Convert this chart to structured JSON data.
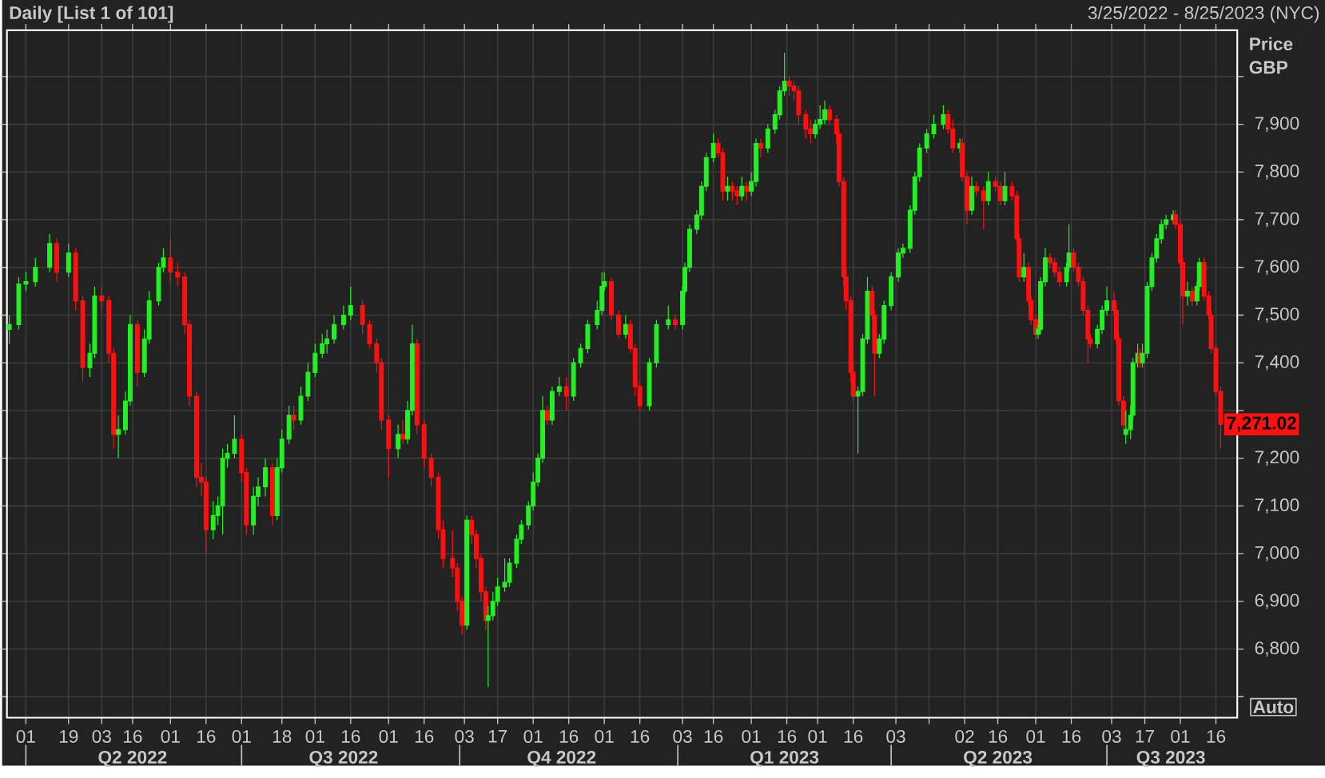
{
  "chart_data": {
    "type": "candlestick",
    "title": "Daily [List 1 of 101]",
    "subtitle": "3/25/2022 - 8/25/2023 (NYC)",
    "ylabel": "Price GBP",
    "colors": [
      "#22f022",
      "#22f022",
      "#22f022",
      "#22f022",
      "#22f022",
      "#ff1010",
      "#22f022",
      "#ff1010",
      "#ff1010",
      "#22f022",
      "#22f022",
      "#ff1010",
      "#ff1010",
      "#ff1010",
      "#22f022",
      "#22f022",
      "#22f022",
      "#ff1010",
      "#22f022",
      "#22f022",
      "#22f022",
      "#22f022",
      "#ff1010",
      "#ff1010",
      "#ff1010",
      "#ff1010",
      "#ff1010",
      "#ff1010",
      "#ff1010",
      "#22f022",
      "#22f022",
      "#22f022",
      "#22f022",
      "#22f022",
      "#ff1010",
      "#ff1010",
      "#22f022",
      "#22f022",
      "#22f022",
      "#ff1010",
      "#22f022",
      "#22f022",
      "#22f022",
      "#ff1010",
      "#22f022",
      "#22f022",
      "#22f022",
      "#22f022",
      "#22f022",
      "#22f022",
      "#22f022",
      "#22f022",
      "#ff1010",
      "#ff1010",
      "#ff1010",
      "#ff1010",
      "#ff1010",
      "#22f022",
      "#ff1010",
      "#22f022",
      "#22f022",
      "#ff1010",
      "#ff1010",
      "#ff1010",
      "#ff1010",
      "#ff1010",
      "#ff1010",
      "#ff1010",
      "#ff1010",
      "#22f022",
      "#ff1010",
      "#ff1010",
      "#ff1010",
      "#ff1010",
      "#22f022",
      "#22f022",
      "#22f022",
      "#22f022",
      "#22f022",
      "#22f022",
      "#22f022",
      "#22f022",
      "#22f022",
      "#22f022",
      "#22f022",
      "#ff1010",
      "#22f022",
      "#22f022",
      "#ff1010",
      "#22f022",
      "#22f022",
      "#22f022",
      "#22f022",
      "#22f022",
      "#22f022",
      "#ff1010",
      "#ff1010",
      "#22f022",
      "#ff1010",
      "#ff1010",
      "#ff1010",
      "#22f022",
      "#22f022",
      "#22f022",
      "#ff1010",
      "#22f022",
      "#22f022",
      "#22f022",
      "#22f022",
      "#22f022",
      "#22f022",
      "#22f022",
      "#ff1010",
      "#ff1010",
      "#22f022",
      "#ff1010",
      "#ff1010",
      "#22f022",
      "#ff1010",
      "#22f022",
      "#22f022",
      "#ff1010",
      "#22f022",
      "#22f022",
      "#22f022",
      "#22f022",
      "#ff1010",
      "#ff1010",
      "#ff1010",
      "#ff1010",
      "#ff1010",
      "#22f022",
      "#22f022",
      "#22f022",
      "#ff1010",
      "#ff1010",
      "#ff1010",
      "#ff1010",
      "#ff1010",
      "#ff1010",
      "#ff1010",
      "#22f022",
      "#22f022",
      "#22f022",
      "#ff1010",
      "#ff1010",
      "#22f022",
      "#22f022",
      "#22f022",
      "#22f022",
      "#22f022",
      "#22f022",
      "#22f022",
      "#22f022",
      "#22f022",
      "#22f022",
      "#22f022",
      "#ff1010",
      "#ff1010",
      "#22f022",
      "#ff1010",
      "#ff1010",
      "#22f022",
      "#ff1010",
      "#ff1010",
      "#22f022",
      "#ff1010",
      "#ff1010",
      "#22f022",
      "#ff1010",
      "#ff1010",
      "#ff1010",
      "#22f022",
      "#ff1010",
      "#ff1010",
      "#ff1010",
      "#22f022",
      "#22f022",
      "#22f022",
      "#ff1010",
      "#ff1010",
      "#ff1010",
      "#22f022",
      "#22f022",
      "#ff1010",
      "#ff1010",
      "#ff1010",
      "#ff1010",
      "#ff1010",
      "#22f022",
      "#22f022",
      "#22f022",
      "#ff1010",
      "#ff1010",
      "#ff1010",
      "#ff1010",
      "#22f022",
      "#22f022",
      "#22f022",
      "#22f022",
      "#ff1010",
      "#22f022",
      "#22f022",
      "#22f022",
      "#22f022",
      "#22f022",
      "#22f022",
      "#22f022",
      "#ff1010",
      "#ff1010",
      "#ff1010",
      "#22f022",
      "#ff1010",
      "#22f022",
      "#22f022",
      "#ff1010",
      "#ff1010",
      "#ff1010",
      "#ff1010",
      "#ff1010"
    ],
    "annotations": [
      {
        "text": "7,271.02",
        "x": "2023-08-18",
        "y": 7271.02
      },
      "Auto"
    ],
    "grid": true,
    "xlim": [
      "2022-03-24",
      "2023-08-25"
    ],
    "ylim": [
      6656,
      8097
    ],
    "x2lim": [
      "2022-03-24",
      "2023-08-25"
    ],
    "xticks": [
      {
        "value": "2022-04-01",
        "label": "01"
      },
      {
        "value": "2022-04-19",
        "label": "19"
      },
      {
        "value": "2022-05-03",
        "label": "03"
      },
      {
        "value": "2022-05-16",
        "label": "16"
      },
      {
        "value": "2022-06-01",
        "label": "01"
      },
      {
        "value": "2022-06-16",
        "label": "16"
      },
      {
        "value": "2022-07-01",
        "label": "01"
      },
      {
        "value": "2022-07-18",
        "label": "18"
      },
      {
        "value": "2022-08-01",
        "label": "01"
      },
      {
        "value": "2022-08-16",
        "label": "16"
      },
      {
        "value": "2022-09-01",
        "label": "01"
      },
      {
        "value": "2022-09-16",
        "label": "16"
      },
      {
        "value": "2022-10-03",
        "label": "03"
      },
      {
        "value": "2022-10-17",
        "label": "17"
      },
      {
        "value": "2022-11-01",
        "label": "01"
      },
      {
        "value": "2022-11-16",
        "label": "16"
      },
      {
        "value": "2022-12-01",
        "label": "01"
      },
      {
        "value": "2022-12-16",
        "label": "16"
      },
      {
        "value": "2023-01-03",
        "label": "03"
      },
      {
        "value": "2023-01-16",
        "label": "16"
      },
      {
        "value": "2023-02-01",
        "label": "01"
      },
      {
        "value": "2023-02-16",
        "label": "16"
      },
      {
        "value": "2023-03-01",
        "label": "01"
      },
      {
        "value": "2023-03-16",
        "label": "16"
      },
      {
        "value": "2023-04-03",
        "label": "03"
      },
      {
        "value": "2023-04-17",
        "label": null
      },
      {
        "value": "2023-05-02",
        "label": "02"
      },
      {
        "value": "2023-05-16",
        "label": "16"
      },
      {
        "value": "2023-06-01",
        "label": "01"
      },
      {
        "value": "2023-06-16",
        "label": "16"
      },
      {
        "value": "2023-07-03",
        "label": "03"
      },
      {
        "value": "2023-07-17",
        "label": "17"
      },
      {
        "value": "2023-08-01",
        "label": "01"
      },
      {
        "value": "2023-08-16",
        "label": "16"
      }
    ],
    "x2ticks": [
      {
        "value": "2022-05-16",
        "label": "Q2 2022"
      },
      {
        "value": "2022-08-13",
        "label": "Q3 2022"
      },
      {
        "value": "2022-11-13",
        "label": "Q4 2022"
      },
      {
        "value": "2023-02-15",
        "label": "Q1 2023"
      },
      {
        "value": "2023-05-16",
        "label": "Q2 2023"
      },
      {
        "value": "2023-07-28",
        "label": "Q3 2023"
      },
      {
        "value": "2022-04-01",
        "label": null
      },
      {
        "value": "2022-07-01",
        "label": null
      },
      {
        "value": "2022-10-01",
        "label": null
      },
      {
        "value": "2023-01-01",
        "label": null
      },
      {
        "value": "2023-04-01",
        "label": null
      },
      {
        "value": "2023-07-01",
        "label": null
      }
    ],
    "yticks": [
      {
        "value": 6700,
        "label": null
      },
      {
        "value": 6800,
        "label": "6,800"
      },
      {
        "value": 6900,
        "label": "6,900"
      },
      {
        "value": 7000,
        "label": "7,000"
      },
      {
        "value": 7100,
        "label": "7,100"
      },
      {
        "value": 7200,
        "label": "7,200"
      },
      {
        "value": 7300,
        "label": null
      },
      {
        "value": 7400,
        "label": "7,400"
      },
      {
        "value": 7500,
        "label": "7,500"
      },
      {
        "value": 7600,
        "label": "7,600"
      },
      {
        "value": 7700,
        "label": "7,700"
      },
      {
        "value": 7800,
        "label": "7,800"
      },
      {
        "value": 7900,
        "label": "7,900"
      },
      {
        "value": 8000,
        "label": null
      }
    ],
    "x": [
      "2022-03-25",
      "2022-03-29",
      "2022-04-01",
      "2022-04-05",
      "2022-04-11",
      "2022-04-14",
      "2022-04-19",
      "2022-04-22",
      "2022-04-25",
      "2022-04-28",
      "2022-04-30",
      "2022-05-03",
      "2022-05-06",
      "2022-05-08",
      "2022-05-10",
      "2022-05-13",
      "2022-05-15",
      "2022-05-18",
      "2022-05-21",
      "2022-05-23",
      "2022-05-27",
      "2022-05-29",
      "2022-06-01",
      "2022-06-04",
      "2022-06-07",
      "2022-06-09",
      "2022-06-12",
      "2022-06-14",
      "2022-06-16",
      "2022-06-19",
      "2022-06-21",
      "2022-06-23",
      "2022-06-25",
      "2022-06-28",
      "2022-07-01",
      "2022-07-03",
      "2022-07-06",
      "2022-07-08",
      "2022-07-11",
      "2022-07-14",
      "2022-07-16",
      "2022-07-18",
      "2022-07-21",
      "2022-07-23",
      "2022-07-26",
      "2022-07-29",
      "2022-08-01",
      "2022-08-04",
      "2022-08-06",
      "2022-08-09",
      "2022-08-13",
      "2022-08-16",
      "2022-08-21",
      "2022-08-24",
      "2022-08-27",
      "2022-08-29",
      "2022-09-01",
      "2022-09-05",
      "2022-09-07",
      "2022-09-09",
      "2022-09-11",
      "2022-09-13",
      "2022-09-16",
      "2022-09-19",
      "2022-09-22",
      "2022-09-24",
      "2022-09-28",
      "2022-09-30",
      "2022-10-02",
      "2022-10-04",
      "2022-10-06",
      "2022-10-08",
      "2022-10-10",
      "2022-10-12",
      "2022-10-13",
      "2022-10-15",
      "2022-10-17",
      "2022-10-20",
      "2022-10-22",
      "2022-10-25",
      "2022-10-27",
      "2022-10-30",
      "2022-11-01",
      "2022-11-03",
      "2022-11-05",
      "2022-11-07",
      "2022-11-09",
      "2022-11-12",
      "2022-11-15",
      "2022-11-18",
      "2022-11-21",
      "2022-11-24",
      "2022-11-28",
      "2022-11-30",
      "2022-12-01",
      "2022-12-04",
      "2022-12-07",
      "2022-12-10",
      "2022-12-12",
      "2022-12-14",
      "2022-12-16",
      "2022-12-20",
      "2022-12-23",
      "2022-12-28",
      "2022-12-31",
      "2023-01-03",
      "2023-01-04",
      "2023-01-06",
      "2023-01-09",
      "2023-01-11",
      "2023-01-13",
      "2023-01-16",
      "2023-01-18",
      "2023-01-20",
      "2023-01-22",
      "2023-01-24",
      "2023-01-26",
      "2023-01-28",
      "2023-01-30",
      "2023-02-01",
      "2023-02-03",
      "2023-02-05",
      "2023-02-08",
      "2023-02-11",
      "2023-02-13",
      "2023-02-15",
      "2023-02-17",
      "2023-02-19",
      "2023-02-21",
      "2023-02-24",
      "2023-02-26",
      "2023-02-28",
      "2023-03-02",
      "2023-03-04",
      "2023-03-06",
      "2023-03-09",
      "2023-03-10",
      "2023-03-12",
      "2023-03-13",
      "2023-03-15",
      "2023-03-16",
      "2023-03-18",
      "2023-03-20",
      "2023-03-22",
      "2023-03-24",
      "2023-03-25",
      "2023-03-27",
      "2023-03-29",
      "2023-04-01",
      "2023-04-04",
      "2023-04-06",
      "2023-04-09",
      "2023-04-11",
      "2023-04-13",
      "2023-04-16",
      "2023-04-19",
      "2023-04-23",
      "2023-04-25",
      "2023-04-27",
      "2023-04-30",
      "2023-05-01",
      "2023-05-03",
      "2023-05-05",
      "2023-05-07",
      "2023-05-10",
      "2023-05-12",
      "2023-05-15",
      "2023-05-17",
      "2023-05-19",
      "2023-05-22",
      "2023-05-24",
      "2023-05-25",
      "2023-05-27",
      "2023-05-29",
      "2023-05-30",
      "2023-06-01",
      "2023-06-02",
      "2023-06-03",
      "2023-06-05",
      "2023-06-07",
      "2023-06-09",
      "2023-06-11",
      "2023-06-14",
      "2023-06-15",
      "2023-06-17",
      "2023-06-19",
      "2023-06-21",
      "2023-06-23",
      "2023-06-24",
      "2023-06-27",
      "2023-06-29",
      "2023-07-01",
      "2023-07-04",
      "2023-07-05",
      "2023-07-06",
      "2023-07-08",
      "2023-07-09",
      "2023-07-11",
      "2023-07-12",
      "2023-07-14",
      "2023-07-15",
      "2023-07-16",
      "2023-07-18",
      "2023-07-20",
      "2023-07-22",
      "2023-07-24",
      "2023-07-26",
      "2023-07-29",
      "2023-07-30",
      "2023-08-01",
      "2023-08-02",
      "2023-08-04",
      "2023-08-06",
      "2023-08-08",
      "2023-08-09",
      "2023-08-11",
      "2023-08-13",
      "2023-08-14",
      "2023-08-16",
      "2023-08-18"
    ],
    "ohlc": [
      [
        7470,
        7500,
        7440,
        7480
      ],
      [
        7480,
        7580,
        7470,
        7565
      ],
      [
        7565,
        7590,
        7550,
        7570
      ],
      [
        7570,
        7620,
        7560,
        7600
      ],
      [
        7600,
        7670,
        7590,
        7650
      ],
      [
        7650,
        7660,
        7570,
        7590
      ],
      [
        7590,
        7650,
        7580,
        7630
      ],
      [
        7630,
        7640,
        7510,
        7530
      ],
      [
        7530,
        7540,
        7360,
        7390
      ],
      [
        7390,
        7440,
        7370,
        7420
      ],
      [
        7420,
        7560,
        7410,
        7540
      ],
      [
        7540,
        7560,
        7510,
        7530
      ],
      [
        7530,
        7540,
        7400,
        7420
      ],
      [
        7420,
        7430,
        7220,
        7250
      ],
      [
        7250,
        7290,
        7200,
        7260
      ],
      [
        7260,
        7340,
        7250,
        7320
      ],
      [
        7320,
        7500,
        7310,
        7480
      ],
      [
        7480,
        7490,
        7350,
        7380
      ],
      [
        7380,
        7470,
        7370,
        7450
      ],
      [
        7450,
        7550,
        7440,
        7530
      ],
      [
        7530,
        7610,
        7520,
        7600
      ],
      [
        7600,
        7640,
        7590,
        7620
      ],
      [
        7620,
        7660,
        7570,
        7590
      ],
      [
        7590,
        7610,
        7560,
        7580
      ],
      [
        7580,
        7590,
        7460,
        7480
      ],
      [
        7480,
        7490,
        7310,
        7330
      ],
      [
        7330,
        7340,
        7140,
        7160
      ],
      [
        7160,
        7190,
        7120,
        7150
      ],
      [
        7150,
        7160,
        7000,
        7050
      ],
      [
        7050,
        7110,
        7030,
        7080
      ],
      [
        7080,
        7120,
        7060,
        7100
      ],
      [
        7100,
        7220,
        7040,
        7200
      ],
      [
        7200,
        7230,
        7180,
        7210
      ],
      [
        7210,
        7290,
        7200,
        7240
      ],
      [
        7240,
        7250,
        7150,
        7170
      ],
      [
        7170,
        7180,
        7040,
        7060
      ],
      [
        7060,
        7140,
        7040,
        7120
      ],
      [
        7120,
        7160,
        7100,
        7140
      ],
      [
        7140,
        7200,
        7120,
        7180
      ],
      [
        7180,
        7190,
        7060,
        7080
      ],
      [
        7080,
        7200,
        7070,
        7180
      ],
      [
        7180,
        7260,
        7170,
        7240
      ],
      [
        7240,
        7310,
        7230,
        7290
      ],
      [
        7290,
        7310,
        7260,
        7280
      ],
      [
        7280,
        7350,
        7270,
        7330
      ],
      [
        7330,
        7400,
        7320,
        7380
      ],
      [
        7380,
        7440,
        7370,
        7420
      ],
      [
        7420,
        7460,
        7410,
        7440
      ],
      [
        7440,
        7470,
        7420,
        7450
      ],
      [
        7450,
        7500,
        7440,
        7480
      ],
      [
        7480,
        7520,
        7470,
        7500
      ],
      [
        7500,
        7560,
        7490,
        7520
      ],
      [
        7520,
        7530,
        7460,
        7480
      ],
      [
        7480,
        7490,
        7430,
        7440
      ],
      [
        7440,
        7450,
        7380,
        7400
      ],
      [
        7400,
        7410,
        7260,
        7280
      ],
      [
        7280,
        7290,
        7160,
        7220
      ],
      [
        7220,
        7270,
        7200,
        7250
      ],
      [
        7250,
        7280,
        7230,
        7240
      ],
      [
        7240,
        7320,
        7230,
        7300
      ],
      [
        7300,
        7480,
        7290,
        7440
      ],
      [
        7440,
        7450,
        7250,
        7270
      ],
      [
        7270,
        7280,
        7180,
        7200
      ],
      [
        7200,
        7210,
        7140,
        7160
      ],
      [
        7160,
        7170,
        7030,
        7050
      ],
      [
        7050,
        7070,
        6970,
        6990
      ],
      [
        6990,
        7050,
        6950,
        6970
      ],
      [
        6970,
        6980,
        6880,
        6900
      ],
      [
        6900,
        6910,
        6830,
        6850
      ],
      [
        6850,
        7080,
        6840,
        7070
      ],
      [
        7070,
        7080,
        7020,
        7040
      ],
      [
        7040,
        7050,
        6970,
        6990
      ],
      [
        6990,
        7000,
        6900,
        6920
      ],
      [
        6920,
        6930,
        6840,
        6860
      ],
      [
        6860,
        6890,
        6720,
        6870
      ],
      [
        6870,
        6920,
        6860,
        6900
      ],
      [
        6900,
        6950,
        6890,
        6930
      ],
      [
        6930,
        6990,
        6920,
        6940
      ],
      [
        6940,
        6990,
        6930,
        6980
      ],
      [
        6980,
        7040,
        6970,
        7030
      ],
      [
        7030,
        7070,
        7020,
        7060
      ],
      [
        7060,
        7110,
        7050,
        7100
      ],
      [
        7100,
        7170,
        7090,
        7150
      ],
      [
        7150,
        7210,
        7140,
        7200
      ],
      [
        7200,
        7330,
        7190,
        7300
      ],
      [
        7300,
        7310,
        7270,
        7280
      ],
      [
        7280,
        7350,
        7270,
        7340
      ],
      [
        7340,
        7370,
        7330,
        7350
      ],
      [
        7350,
        7370,
        7300,
        7330
      ],
      [
        7330,
        7410,
        7320,
        7400
      ],
      [
        7400,
        7440,
        7390,
        7430
      ],
      [
        7430,
        7490,
        7420,
        7480
      ],
      [
        7480,
        7530,
        7470,
        7510
      ],
      [
        7510,
        7590,
        7500,
        7560
      ],
      [
        7560,
        7590,
        7550,
        7570
      ],
      [
        7570,
        7580,
        7490,
        7500
      ],
      [
        7500,
        7510,
        7450,
        7460
      ],
      [
        7460,
        7500,
        7450,
        7480
      ],
      [
        7480,
        7490,
        7420,
        7430
      ],
      [
        7430,
        7440,
        7330,
        7350
      ],
      [
        7350,
        7360,
        7300,
        7310
      ],
      [
        7310,
        7410,
        7300,
        7400
      ],
      [
        7400,
        7490,
        7390,
        7480
      ],
      [
        7480,
        7520,
        7470,
        7490
      ],
      [
        7490,
        7500,
        7470,
        7480
      ],
      [
        7480,
        7560,
        7470,
        7550
      ],
      [
        7550,
        7610,
        7540,
        7600
      ],
      [
        7600,
        7690,
        7590,
        7680
      ],
      [
        7680,
        7720,
        7670,
        7710
      ],
      [
        7710,
        7780,
        7700,
        7770
      ],
      [
        7770,
        7840,
        7760,
        7830
      ],
      [
        7830,
        7880,
        7820,
        7860
      ],
      [
        7860,
        7870,
        7830,
        7840
      ],
      [
        7840,
        7850,
        7740,
        7760
      ],
      [
        7760,
        7790,
        7740,
        7770
      ],
      [
        7770,
        7780,
        7740,
        7760
      ],
      [
        7760,
        7770,
        7730,
        7750
      ],
      [
        7750,
        7790,
        7740,
        7770
      ],
      [
        7770,
        7780,
        7740,
        7760
      ],
      [
        7760,
        7800,
        7750,
        7780
      ],
      [
        7780,
        7870,
        7770,
        7860
      ],
      [
        7860,
        7870,
        7830,
        7850
      ],
      [
        7850,
        7900,
        7840,
        7890
      ],
      [
        7890,
        7930,
        7880,
        7920
      ],
      [
        7920,
        7980,
        7910,
        7970
      ],
      [
        7970,
        8050,
        7960,
        7990
      ],
      [
        7990,
        8000,
        7960,
        7980
      ],
      [
        7980,
        7990,
        7950,
        7970
      ],
      [
        7970,
        7980,
        7900,
        7920
      ],
      [
        7920,
        7930,
        7870,
        7890
      ],
      [
        7890,
        7910,
        7860,
        7880
      ],
      [
        7880,
        7910,
        7870,
        7900
      ],
      [
        7900,
        7940,
        7890,
        7910
      ],
      [
        7910,
        7950,
        7900,
        7930
      ],
      [
        7930,
        7940,
        7900,
        7910
      ],
      [
        7910,
        7920,
        7860,
        7880
      ],
      [
        7880,
        7890,
        7770,
        7780
      ],
      [
        7780,
        7790,
        7560,
        7580
      ],
      [
        7580,
        7600,
        7510,
        7530
      ],
      [
        7530,
        7540,
        7360,
        7380
      ],
      [
        7380,
        7400,
        7320,
        7330
      ],
      [
        7330,
        7350,
        7210,
        7340
      ],
      [
        7340,
        7460,
        7330,
        7450
      ],
      [
        7450,
        7580,
        7440,
        7550
      ],
      [
        7550,
        7560,
        7490,
        7500
      ],
      [
        7500,
        7510,
        7330,
        7420
      ],
      [
        7420,
        7460,
        7410,
        7450
      ],
      [
        7450,
        7530,
        7440,
        7520
      ],
      [
        7520,
        7590,
        7510,
        7580
      ],
      [
        7580,
        7640,
        7570,
        7630
      ],
      [
        7630,
        7650,
        7620,
        7640
      ],
      [
        7640,
        7730,
        7630,
        7720
      ],
      [
        7720,
        7800,
        7710,
        7790
      ],
      [
        7790,
        7860,
        7780,
        7850
      ],
      [
        7850,
        7890,
        7840,
        7880
      ],
      [
        7880,
        7920,
        7870,
        7900
      ],
      [
        7900,
        7940,
        7890,
        7920
      ],
      [
        7920,
        7930,
        7880,
        7890
      ],
      [
        7890,
        7910,
        7840,
        7850
      ],
      [
        7850,
        7870,
        7840,
        7860
      ],
      [
        7860,
        7870,
        7780,
        7790
      ],
      [
        7790,
        7800,
        7690,
        7720
      ],
      [
        7720,
        7790,
        7710,
        7770
      ],
      [
        7770,
        7780,
        7750,
        7760
      ],
      [
        7760,
        7770,
        7680,
        7740
      ],
      [
        7740,
        7800,
        7730,
        7780
      ],
      [
        7780,
        7790,
        7760,
        7770
      ],
      [
        7770,
        7780,
        7730,
        7740
      ],
      [
        7740,
        7800,
        7730,
        7770
      ],
      [
        7770,
        7780,
        7740,
        7750
      ],
      [
        7750,
        7760,
        7650,
        7660
      ],
      [
        7660,
        7670,
        7570,
        7580
      ],
      [
        7580,
        7630,
        7570,
        7600
      ],
      [
        7600,
        7610,
        7520,
        7530
      ],
      [
        7530,
        7540,
        7480,
        7490
      ],
      [
        7490,
        7500,
        7450,
        7460
      ],
      [
        7460,
        7480,
        7450,
        7470
      ],
      [
        7470,
        7580,
        7460,
        7570
      ],
      [
        7570,
        7640,
        7560,
        7620
      ],
      [
        7620,
        7630,
        7600,
        7610
      ],
      [
        7610,
        7620,
        7580,
        7590
      ],
      [
        7590,
        7600,
        7560,
        7570
      ],
      [
        7570,
        7610,
        7560,
        7600
      ],
      [
        7600,
        7690,
        7590,
        7630
      ],
      [
        7630,
        7640,
        7590,
        7600
      ],
      [
        7600,
        7610,
        7560,
        7570
      ],
      [
        7570,
        7580,
        7500,
        7510
      ],
      [
        7510,
        7520,
        7400,
        7450
      ],
      [
        7450,
        7460,
        7430,
        7440
      ],
      [
        7440,
        7480,
        7430,
        7470
      ],
      [
        7470,
        7520,
        7460,
        7510
      ],
      [
        7510,
        7560,
        7500,
        7530
      ],
      [
        7530,
        7550,
        7500,
        7510
      ],
      [
        7510,
        7520,
        7440,
        7450
      ],
      [
        7450,
        7460,
        7310,
        7320
      ],
      [
        7320,
        7330,
        7260,
        7270
      ],
      [
        7250,
        7300,
        7230,
        7260
      ],
      [
        7260,
        7310,
        7240,
        7290
      ],
      [
        7290,
        7410,
        7280,
        7400
      ],
      [
        7400,
        7440,
        7390,
        7420
      ],
      [
        7420,
        7430,
        7390,
        7400
      ],
      [
        7400,
        7440,
        7390,
        7420
      ],
      [
        7420,
        7570,
        7410,
        7560
      ],
      [
        7560,
        7630,
        7550,
        7620
      ],
      [
        7620,
        7670,
        7610,
        7660
      ],
      [
        7660,
        7700,
        7650,
        7690
      ],
      [
        7690,
        7710,
        7680,
        7700
      ],
      [
        7700,
        7720,
        7690,
        7710
      ],
      [
        7710,
        7720,
        7680,
        7690
      ],
      [
        7690,
        7700,
        7600,
        7610
      ],
      [
        7610,
        7620,
        7480,
        7540
      ],
      [
        7540,
        7570,
        7520,
        7550
      ],
      [
        7550,
        7560,
        7520,
        7530
      ],
      [
        7530,
        7570,
        7520,
        7560
      ],
      [
        7560,
        7620,
        7550,
        7610
      ],
      [
        7610,
        7620,
        7530,
        7540
      ],
      [
        7540,
        7550,
        7490,
        7500
      ],
      [
        7500,
        7510,
        7420,
        7430
      ],
      [
        7430,
        7440,
        7330,
        7340
      ],
      [
        7340,
        7350,
        7220,
        7271.02
      ]
    ]
  }
}
